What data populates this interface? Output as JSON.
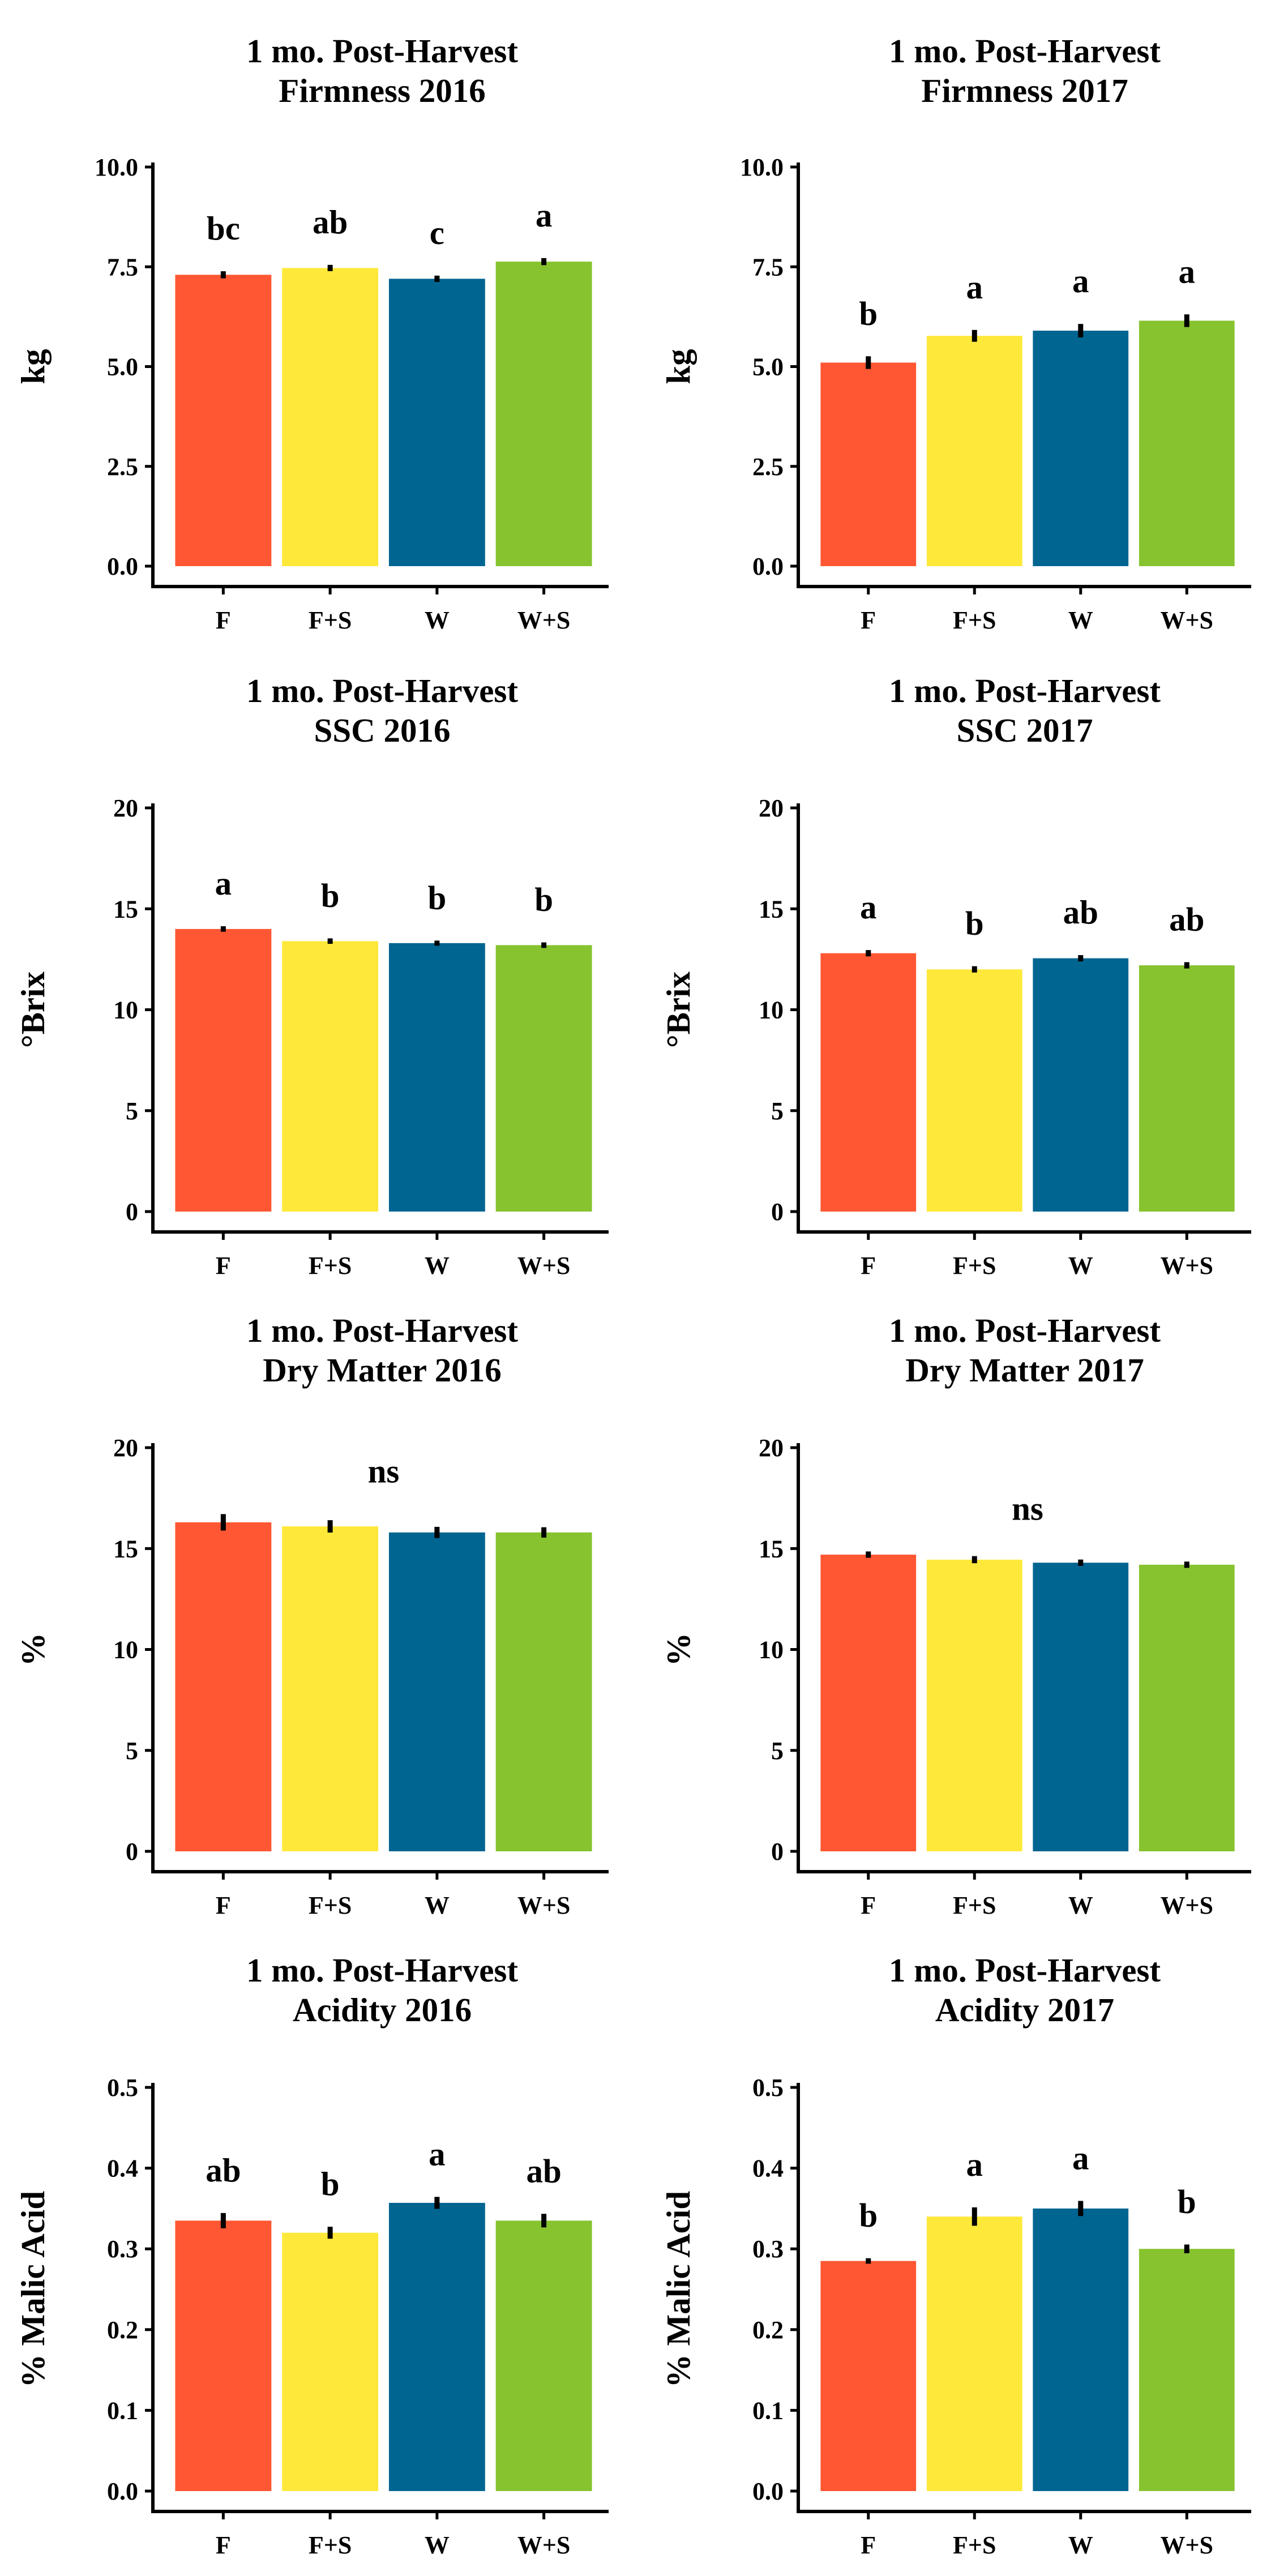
{
  "chart_data": [
    {
      "type": "bar",
      "title": [
        "1 mo. Post-Harvest",
        "Firmness 2016"
      ],
      "ylabel": "kg",
      "categories": [
        "F",
        "F+S",
        "W",
        "W+S"
      ],
      "colors": [
        "#FF5733",
        "#FEE93A",
        "#006591",
        "#86C32F"
      ],
      "ylim": [
        0,
        10
      ],
      "yticks": [
        0,
        2.5,
        5,
        7.5,
        10
      ],
      "ytick_labels": [
        "0.0",
        "2.5",
        "5.0",
        "7.5",
        "10.0"
      ],
      "values": [
        7.3,
        7.47,
        7.2,
        7.63
      ],
      "errors": [
        0.06,
        0.05,
        0.05,
        0.06
      ],
      "significance": [
        "bc",
        "ab",
        "c",
        "a"
      ]
    },
    {
      "type": "bar",
      "title": [
        "1 mo. Post-Harvest",
        "Firmness 2017"
      ],
      "ylabel": "kg",
      "categories": [
        "F",
        "F+S",
        "W",
        "W+S"
      ],
      "colors": [
        "#FF5733",
        "#FEE93A",
        "#006591",
        "#86C32F"
      ],
      "ylim": [
        0,
        10
      ],
      "yticks": [
        0,
        2.5,
        5,
        7.5,
        10
      ],
      "ytick_labels": [
        "0.0",
        "2.5",
        "5.0",
        "7.5",
        "10.0"
      ],
      "values": [
        5.1,
        5.77,
        5.9,
        6.15
      ],
      "errors": [
        0.13,
        0.12,
        0.14,
        0.13
      ],
      "significance": [
        "b",
        "a",
        "a",
        "a"
      ]
    },
    {
      "type": "bar",
      "title": [
        "1 mo. Post-Harvest",
        "SSC 2016"
      ],
      "ylabel": "°Brix",
      "categories": [
        "F",
        "F+S",
        "W",
        "W+S"
      ],
      "colors": [
        "#FF5733",
        "#FEE93A",
        "#006591",
        "#86C32F"
      ],
      "ylim": [
        0,
        20
      ],
      "yticks": [
        0,
        5,
        10,
        15,
        20
      ],
      "ytick_labels": [
        "0",
        "5",
        "10",
        "15",
        "20"
      ],
      "values": [
        14.0,
        13.4,
        13.3,
        13.2
      ],
      "errors": [
        0.08,
        0.08,
        0.07,
        0.08
      ],
      "significance": [
        "a",
        "b",
        "b",
        "b"
      ]
    },
    {
      "type": "bar",
      "title": [
        "1 mo. Post-Harvest",
        "SSC 2017"
      ],
      "ylabel": "°Brix",
      "categories": [
        "F",
        "F+S",
        "W",
        "W+S"
      ],
      "colors": [
        "#FF5733",
        "#FEE93A",
        "#006591",
        "#86C32F"
      ],
      "ylim": [
        0,
        20
      ],
      "yticks": [
        0,
        5,
        10,
        15,
        20
      ],
      "ytick_labels": [
        "0",
        "5",
        "10",
        "15",
        "20"
      ],
      "values": [
        12.8,
        12.0,
        12.55,
        12.2
      ],
      "errors": [
        0.1,
        0.1,
        0.1,
        0.1
      ],
      "significance": [
        "a",
        "b",
        "ab",
        "ab"
      ]
    },
    {
      "type": "bar",
      "title": [
        "1 mo. Post-Harvest",
        "Dry Matter 2016"
      ],
      "ylabel": "%",
      "categories": [
        "F",
        "F+S",
        "W",
        "W+S"
      ],
      "colors": [
        "#FF5733",
        "#FEE93A",
        "#006591",
        "#86C32F"
      ],
      "ylim": [
        0,
        20
      ],
      "yticks": [
        0,
        5,
        10,
        15,
        20
      ],
      "ytick_labels": [
        "0",
        "5",
        "10",
        "15",
        "20"
      ],
      "values": [
        16.3,
        16.1,
        15.8,
        15.8
      ],
      "errors": [
        0.35,
        0.25,
        0.22,
        0.2
      ],
      "significance": [
        "ns"
      ]
    },
    {
      "type": "bar",
      "title": [
        "1 mo. Post-Harvest",
        "Dry Matter 2017"
      ],
      "ylabel": "%",
      "categories": [
        "F",
        "F+S",
        "W",
        "W+S"
      ],
      "colors": [
        "#FF5733",
        "#FEE93A",
        "#006591",
        "#86C32F"
      ],
      "ylim": [
        0,
        20
      ],
      "yticks": [
        0,
        5,
        10,
        15,
        20
      ],
      "ytick_labels": [
        "0",
        "5",
        "10",
        "15",
        "20"
      ],
      "values": [
        14.7,
        14.45,
        14.3,
        14.2
      ],
      "errors": [
        0.1,
        0.12,
        0.1,
        0.1
      ],
      "significance": [
        "ns"
      ]
    },
    {
      "type": "bar",
      "title": [
        "1 mo. Post-Harvest",
        "Acidity 2016"
      ],
      "ylabel": "% Malic Acid",
      "categories": [
        "F",
        "F+S",
        "W",
        "W+S"
      ],
      "colors": [
        "#FF5733",
        "#FEE93A",
        "#006591",
        "#86C32F"
      ],
      "ylim": [
        0,
        0.5
      ],
      "yticks": [
        0,
        0.1,
        0.2,
        0.3,
        0.4,
        0.5
      ],
      "ytick_labels": [
        "0.0",
        "0.1",
        "0.2",
        "0.3",
        "0.4",
        "0.5"
      ],
      "values": [
        0.335,
        0.32,
        0.357,
        0.335
      ],
      "errors": [
        0.008,
        0.006,
        0.006,
        0.007
      ],
      "significance": [
        "ab",
        "b",
        "a",
        "ab"
      ]
    },
    {
      "type": "bar",
      "title": [
        "1 mo. Post-Harvest",
        "Acidity 2017"
      ],
      "ylabel": "% Malic Acid",
      "categories": [
        "F",
        "F+S",
        "W",
        "W+S"
      ],
      "colors": [
        "#FF5733",
        "#FEE93A",
        "#006591",
        "#86C32F"
      ],
      "ylim": [
        0,
        0.5
      ],
      "yticks": [
        0,
        0.1,
        0.2,
        0.3,
        0.4,
        0.5
      ],
      "ytick_labels": [
        "0.0",
        "0.1",
        "0.2",
        "0.3",
        "0.4",
        "0.5"
      ],
      "values": [
        0.285,
        0.34,
        0.35,
        0.3
      ],
      "errors": [
        0.002,
        0.01,
        0.008,
        0.004
      ],
      "significance": [
        "b",
        "a",
        "a",
        "b"
      ]
    }
  ]
}
